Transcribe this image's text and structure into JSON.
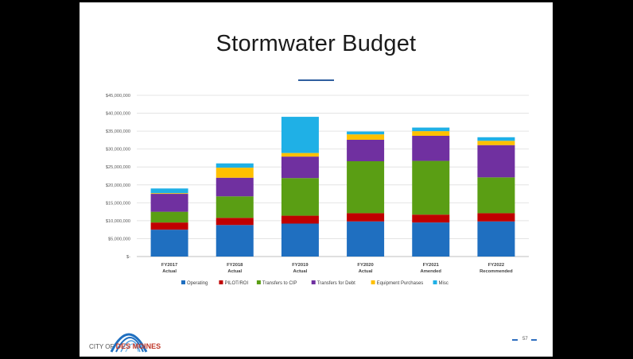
{
  "slide": {
    "title": "Stormwater Budget",
    "page_number": "57",
    "logo": {
      "prefix": "CITY OF",
      "name": "DES MOINES"
    }
  },
  "chart_data": {
    "type": "bar",
    "stacked": true,
    "title": "",
    "xlabel": "",
    "ylabel": "",
    "ylim": [
      0,
      45000000
    ],
    "yticks": [
      "$-",
      "$5,000,000",
      "$10,000,000",
      "$15,000,000",
      "$20,000,000",
      "$25,000,000",
      "$30,000,000",
      "$35,000,000",
      "$40,000,000",
      "$45,000,000"
    ],
    "grid": true,
    "legend_position": "bottom",
    "categories": [
      {
        "line1": "FY2017",
        "line2": "Actual"
      },
      {
        "line1": "FY2018",
        "line2": "Actual"
      },
      {
        "line1": "FY2019",
        "line2": "Actual"
      },
      {
        "line1": "FY2020",
        "line2": "Actual"
      },
      {
        "line1": "FY2021",
        "line2": "Amended"
      },
      {
        "line1": "FY2022",
        "line2": "Recommended"
      }
    ],
    "series": [
      {
        "name": "Operating",
        "color": "#1f6fc0",
        "values": [
          7500000,
          8800000,
          9200000,
          9800000,
          9500000,
          9800000
        ]
      },
      {
        "name": "PILOT/ROI",
        "color": "#c00000",
        "values": [
          2000000,
          2000000,
          2200000,
          2300000,
          2200000,
          2300000
        ]
      },
      {
        "name": "Transfers to CIP",
        "color": "#5a9e14",
        "values": [
          3000000,
          6000000,
          10500000,
          14500000,
          15000000,
          10000000
        ]
      },
      {
        "name": "Transfers for Debt",
        "color": "#7030a0",
        "values": [
          5000000,
          5200000,
          6000000,
          6000000,
          7000000,
          9000000
        ]
      },
      {
        "name": "Equipment Purchases",
        "color": "#ffc000",
        "values": [
          200000,
          2800000,
          1000000,
          1500000,
          1300000,
          1200000
        ]
      },
      {
        "name": "Misc",
        "color": "#1fb0e6",
        "values": [
          1300000,
          1200000,
          10100000,
          800000,
          1000000,
          1000000
        ]
      }
    ]
  }
}
